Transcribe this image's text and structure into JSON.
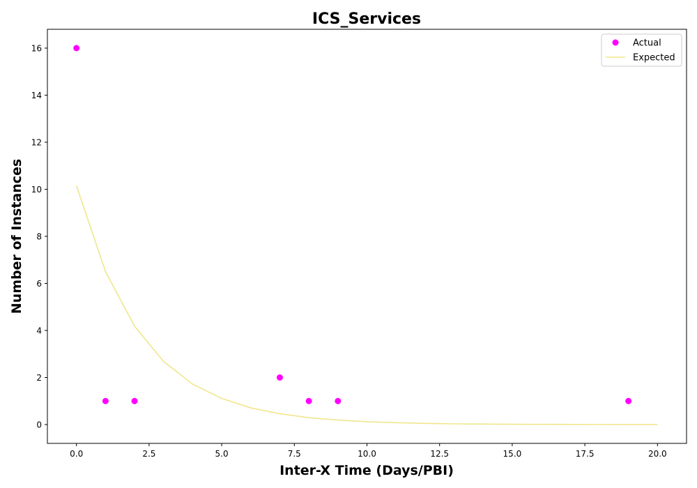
{
  "chart_data": {
    "type": "scatter",
    "title": "ICS_Services",
    "xlabel": "Inter-X Time (Days/PBI)",
    "ylabel": "Number of Instances",
    "xlim": [
      -1.0,
      21.0
    ],
    "ylim": [
      -0.8,
      16.8
    ],
    "xticks": [
      0.0,
      2.5,
      5.0,
      7.5,
      10.0,
      12.5,
      15.0,
      17.5,
      20.0
    ],
    "xtick_labels": [
      "0.0",
      "2.5",
      "5.0",
      "7.5",
      "10.0",
      "12.5",
      "15.0",
      "17.5",
      "20.0"
    ],
    "yticks": [
      0,
      2,
      4,
      6,
      8,
      10,
      12,
      14,
      16
    ],
    "ytick_labels": [
      "0",
      "2",
      "4",
      "6",
      "8",
      "10",
      "12",
      "14",
      "16"
    ],
    "grid": false,
    "legend": "top-right",
    "series": [
      {
        "name": "Actual",
        "kind": "scatter",
        "color": "#ff00ff",
        "points": [
          [
            0,
            16
          ],
          [
            1,
            1
          ],
          [
            2,
            1
          ],
          [
            7,
            2
          ],
          [
            8,
            1
          ],
          [
            9,
            1
          ],
          [
            19,
            1
          ]
        ]
      },
      {
        "name": "Expected",
        "kind": "line",
        "color": "#f0e68c",
        "points": [
          [
            0,
            10.15
          ],
          [
            1,
            6.5
          ],
          [
            2,
            4.18
          ],
          [
            3,
            2.68
          ],
          [
            4,
            1.72
          ],
          [
            5,
            1.11
          ],
          [
            6,
            0.71
          ],
          [
            7,
            0.46
          ],
          [
            8,
            0.29
          ],
          [
            9,
            0.19
          ],
          [
            10,
            0.12
          ],
          [
            11,
            0.08
          ],
          [
            12,
            0.05
          ],
          [
            13,
            0.03
          ],
          [
            14,
            0.02
          ],
          [
            15,
            0.014
          ],
          [
            16,
            0.009
          ],
          [
            17,
            0.006
          ],
          [
            18,
            0.004
          ],
          [
            19,
            0.002
          ],
          [
            20,
            0.0015
          ]
        ]
      }
    ]
  }
}
